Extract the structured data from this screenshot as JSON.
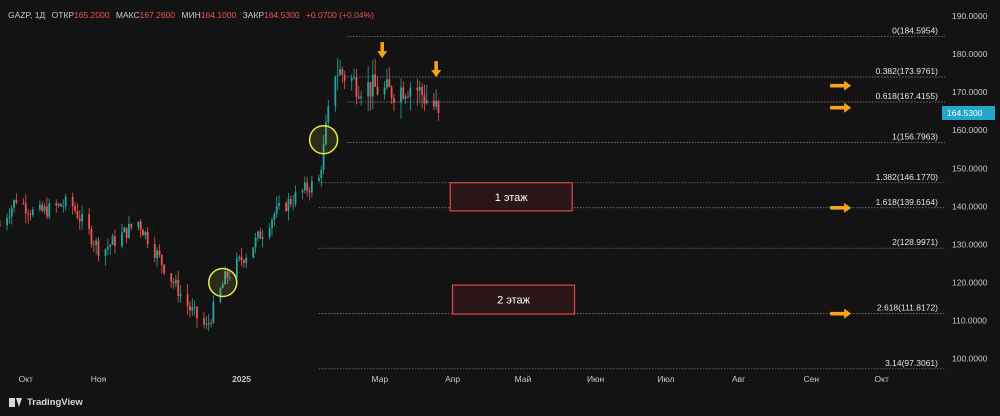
{
  "header": {
    "symbol": "GAZP",
    "interval": "1Д",
    "open_label": "ОТКР",
    "open": "165.2000",
    "high_label": "МАКС",
    "high": "167.2600",
    "low_label": "МИН",
    "low": "164.1000",
    "close_label": "ЗАКР",
    "close": "164.5300",
    "change": "+0.0700 (+0.04%)"
  },
  "branding": {
    "name": "TradingView"
  },
  "colors": {
    "background": "#131313",
    "candle_up": "#26a69a",
    "candle_down": "#ef5350",
    "fib_line": "#8a8a8a",
    "price_tag": "#22a6c9",
    "arrow": "#f7a21b",
    "box_border": "#e5484d",
    "circle": "#e8e84a"
  },
  "chart_data": {
    "type": "candlestick",
    "title": "",
    "ylim": [
      97,
      190
    ],
    "y_ticks": [
      100,
      110,
      120,
      130,
      140,
      150,
      160,
      170,
      180,
      190
    ],
    "y_tick_labels": [
      "100.0000",
      "110.0000",
      "120.0000",
      "130.0000",
      "140.0000",
      "150.0000",
      "160.0000",
      "170.0000",
      "180.0000",
      "190.0000"
    ],
    "x_ticks": [
      {
        "label": "Окт",
        "date": "2024-10-01"
      },
      {
        "label": "Ноя",
        "date": "2024-11-01"
      },
      {
        "label": "2025",
        "date": "2025-01-01"
      },
      {
        "label": "Мар",
        "date": "2025-03-01"
      },
      {
        "label": "Апр",
        "date": "2025-04-01"
      },
      {
        "label": "Май",
        "date": "2025-05-01"
      },
      {
        "label": "Июн",
        "date": "2025-06-01"
      },
      {
        "label": "Июл",
        "date": "2025-07-01"
      },
      {
        "label": "Авг",
        "date": "2025-08-01"
      },
      {
        "label": "Сен",
        "date": "2025-09-01"
      },
      {
        "label": "Окт",
        "date": "2025-10-01"
      }
    ],
    "x_start": "2024-09-20",
    "x_end": "2025-10-28",
    "current_price": {
      "value": 164.53,
      "label": "164.5300"
    },
    "fib_levels": [
      {
        "value": 184.5954,
        "label": "0(184.5954)"
      },
      {
        "value": 173.9761,
        "label": "0.382(173.9761)"
      },
      {
        "value": 167.4155,
        "label": "0.618(167.4155)"
      },
      {
        "value": 156.7963,
        "label": "1(156.7963)"
      },
      {
        "value": 146.177,
        "label": "1.382(146.1770)"
      },
      {
        "value": 139.6164,
        "label": "1.618(139.6164)"
      },
      {
        "value": 128.9971,
        "label": "2(128.9971)"
      },
      {
        "value": 111.8172,
        "label": "2.618(111.8172)"
      },
      {
        "value": 97.3061,
        "label": "3.14(97.3061)"
      }
    ],
    "line_starts": [
      {
        "date": "2025-02-03",
        "levels": [
          139.6164,
          146.177,
          128.9971,
          111.8172,
          97.3061
        ]
      },
      {
        "date": "2025-02-15",
        "levels": [
          184.5954,
          173.9761,
          167.4155,
          156.7963
        ]
      }
    ],
    "annotation_boxes": [
      {
        "text": "1 этаж",
        "date_from": "2025-03-31",
        "date_to": "2025-05-22",
        "low": 138.8,
        "high": 146.2
      },
      {
        "text": "2 этаж",
        "date_from": "2025-04-01",
        "date_to": "2025-05-23",
        "low": 111.7,
        "high": 119.3
      }
    ],
    "circles": [
      {
        "date": "2024-12-24",
        "value": 120.0
      },
      {
        "date": "2025-02-05",
        "value": 157.5
      }
    ],
    "arrows_down": [
      {
        "date": "2025-03-02",
        "value": 180.0
      },
      {
        "date": "2025-03-25",
        "value": 175.0
      }
    ],
    "arrows_right": [
      {
        "date": "2025-09-15",
        "value": 171.7
      },
      {
        "date": "2025-09-15",
        "value": 165.9
      },
      {
        "date": "2025-09-15",
        "value": 139.6
      },
      {
        "date": "2025-09-15",
        "value": 111.8
      }
    ],
    "candles_keypoints": [
      [
        "2024-09-20",
        135
      ],
      [
        "2024-09-27",
        142
      ],
      [
        "2024-10-05",
        138
      ],
      [
        "2024-10-20",
        141
      ],
      [
        "2024-11-02",
        128
      ],
      [
        "2024-11-18",
        136
      ],
      [
        "2024-12-01",
        122
      ],
      [
        "2024-12-10",
        113
      ],
      [
        "2024-12-17",
        108
      ],
      [
        "2024-12-25",
        121
      ],
      [
        "2025-01-05",
        129
      ],
      [
        "2025-01-15",
        138
      ],
      [
        "2025-01-25",
        143
      ],
      [
        "2025-02-03",
        147
      ],
      [
        "2025-02-10",
        176
      ],
      [
        "2025-02-20",
        172
      ],
      [
        "2025-03-05",
        170
      ],
      [
        "2025-03-15",
        172
      ],
      [
        "2025-03-26",
        165
      ]
    ]
  }
}
